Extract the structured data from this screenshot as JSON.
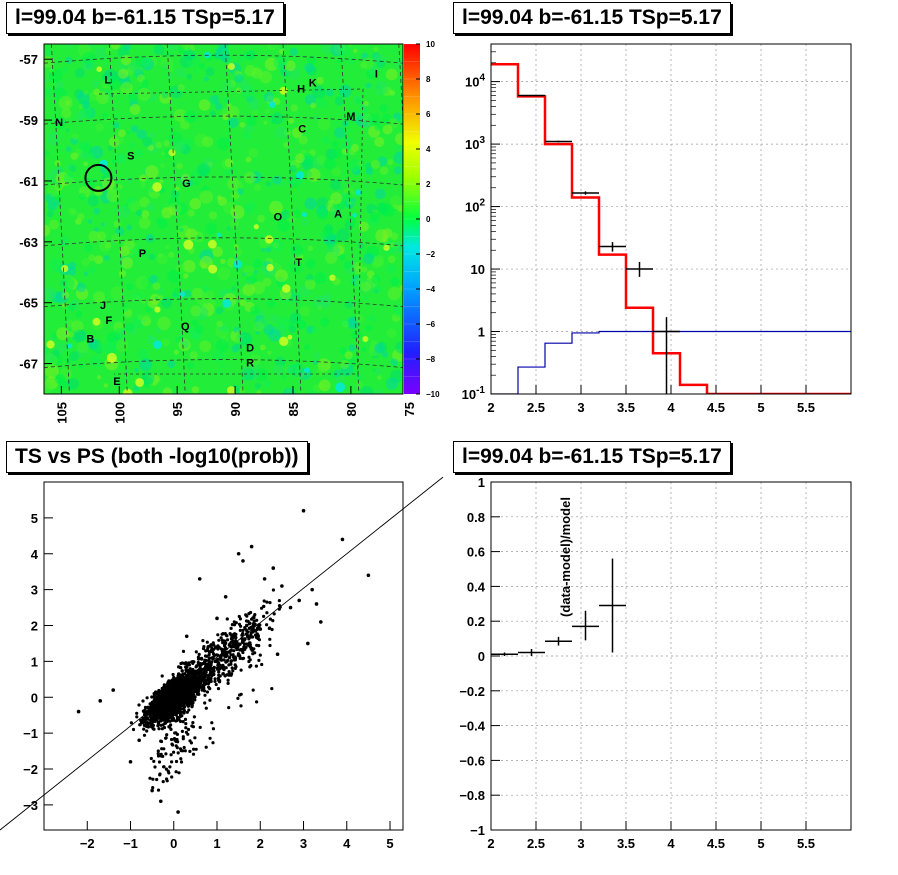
{
  "panels": {
    "skymap_title": "l=99.04 b=-61.15 TSp=5.17",
    "spectrum_title": "l=99.04 b=-61.15 TSp=5.17",
    "scatter_title": "TS vs PS (both -log10(prob))",
    "residual_title": "l=99.04 b=-61.15 TSp=5.17"
  },
  "chart_data": [
    {
      "type": "heatmap",
      "title": "l=99.04 b=-61.15 TSp=5.17",
      "x_ticks": [
        105,
        100,
        95,
        90,
        85,
        80,
        75
      ],
      "y_ticks": [
        -57,
        -59,
        -61,
        -63,
        -65,
        -67
      ],
      "xlim": [
        106.5,
        75.5
      ],
      "ylim": [
        -68.0,
        -56.5
      ],
      "colorbar_ticks": [
        10,
        8,
        6,
        4,
        2,
        0,
        -2,
        -4,
        -6,
        -8,
        -10
      ],
      "colorbar_range": [
        -10,
        10
      ],
      "typical_value_range": [
        -1,
        1
      ],
      "source_circle": {
        "l": 101.8,
        "b": -60.9
      },
      "cell_labels": [
        {
          "text": "L",
          "l": 101.0,
          "b": -57.8
        },
        {
          "text": "H",
          "l": 84.3,
          "b": -58.1
        },
        {
          "text": "K",
          "l": 83.3,
          "b": -57.9
        },
        {
          "text": "I",
          "l": 77.8,
          "b": -57.6
        },
        {
          "text": "N",
          "l": 105.2,
          "b": -59.2
        },
        {
          "text": "M",
          "l": 80.0,
          "b": -59.0
        },
        {
          "text": "C",
          "l": 84.2,
          "b": -59.4
        },
        {
          "text": "S",
          "l": 99.0,
          "b": -60.3
        },
        {
          "text": "G",
          "l": 94.2,
          "b": -61.2
        },
        {
          "text": "O",
          "l": 86.3,
          "b": -62.3
        },
        {
          "text": "A",
          "l": 81.1,
          "b": -62.2
        },
        {
          "text": "P",
          "l": 98.0,
          "b": -63.5
        },
        {
          "text": "T",
          "l": 84.5,
          "b": -63.8
        },
        {
          "text": "J",
          "l": 101.4,
          "b": -65.2
        },
        {
          "text": "F",
          "l": 100.9,
          "b": -65.7
        },
        {
          "text": "B",
          "l": 102.5,
          "b": -66.3
        },
        {
          "text": "Q",
          "l": 94.3,
          "b": -65.9
        },
        {
          "text": "D",
          "l": 88.7,
          "b": -66.6
        },
        {
          "text": "R",
          "l": 88.7,
          "b": -67.1
        },
        {
          "text": "E",
          "l": 100.2,
          "b": -67.7
        }
      ]
    },
    {
      "type": "line",
      "title": "l=99.04 b=-61.15 TSp=5.17",
      "y_scale": "log",
      "xlim": [
        2,
        6
      ],
      "ylim": [
        0.1,
        40000
      ],
      "x_ticks": [
        "2",
        "2.5",
        "3",
        "3.5",
        "4",
        "4.5",
        "5",
        "5.5"
      ],
      "y_ticks": [
        "10^4",
        "10^3",
        "10^2",
        "10",
        "1",
        "10^-1"
      ],
      "series": [
        {
          "kind": "model-histogram",
          "color": "#ff0000",
          "bin_edges": [
            2.0,
            2.3,
            2.6,
            2.9,
            3.2,
            3.5,
            3.8,
            4.1,
            4.4,
            6.0
          ],
          "values": [
            19000,
            5800,
            1000,
            140,
            17,
            2.4,
            0.45,
            0.14,
            0.1
          ]
        },
        {
          "kind": "background-histogram",
          "color": "#0000aa",
          "bin_edges": [
            2.0,
            2.3,
            2.6,
            2.9,
            3.2,
            6.0
          ],
          "values": [
            0.1,
            0.27,
            0.65,
            0.95,
            1.0
          ]
        },
        {
          "kind": "data-points",
          "color": "#000000",
          "x": [
            2.45,
            2.75,
            3.05,
            3.35,
            3.65,
            3.95
          ],
          "y": [
            6000,
            1100,
            165,
            23,
            10,
            1.0
          ],
          "x_err": [
            0.15,
            0.15,
            0.15,
            0.15,
            0.15,
            0.15
          ],
          "y_low": [
            5900,
            1070,
            155,
            19,
            7.5,
            0.1
          ],
          "y_high": [
            6100,
            1130,
            175,
            27,
            13,
            1.7
          ]
        }
      ]
    },
    {
      "type": "scatter",
      "title": "TS vs PS (both -log10(prob))",
      "xlim": [
        -3,
        5.3
      ],
      "ylim": [
        -3.7,
        6.0
      ],
      "x_ticks": [
        "−2",
        "−1",
        "0",
        "1",
        "2",
        "3",
        "4",
        "5"
      ],
      "y_ticks": [
        "5",
        "4",
        "3",
        "2",
        "1",
        "0",
        "−1",
        "−2",
        "−3"
      ],
      "diagonal": {
        "x": [
          -3,
          5.3
        ],
        "y": [
          -3.7,
          5.3
        ]
      },
      "outliers": {
        "x": [
          3.0,
          3.9,
          4.5,
          3.2,
          2.9,
          2.5,
          2.1,
          1.6,
          1.5,
          1.8,
          2.3,
          2.7,
          3.3,
          3.1,
          -2.2,
          -1.7,
          -1.4,
          -1.0,
          -0.5,
          0.1,
          0.6,
          1.2,
          1.0,
          2.0,
          -0.8,
          -0.3,
          0.3,
          3.4,
          2.4
        ],
        "y": [
          5.2,
          4.4,
          3.4,
          3.0,
          2.7,
          3.1,
          3.3,
          3.8,
          4.0,
          4.2,
          3.6,
          2.5,
          2.6,
          1.5,
          -0.4,
          -0.1,
          0.2,
          -1.8,
          -2.6,
          -3.2,
          3.3,
          2.8,
          2.2,
          1.9,
          -1.2,
          -2.9,
          1.7,
          2.1,
          1.2
        ]
      }
    },
    {
      "type": "scatter",
      "title": "l=99.04 b=-61.15 TSp=5.17",
      "ylabel": "(data-model)/model",
      "xlim": [
        2,
        6
      ],
      "ylim": [
        -1,
        1
      ],
      "x_ticks": [
        "2",
        "2.5",
        "3",
        "3.5",
        "4",
        "4.5",
        "5",
        "5.5"
      ],
      "y_ticks": [
        "1",
        "0.8",
        "0.6",
        "0.4",
        "0.2",
        "0",
        "−0.2",
        "−0.4",
        "−0.6",
        "−0.8",
        "−1"
      ],
      "x": [
        2.15,
        2.45,
        2.75,
        3.05,
        3.35
      ],
      "y": [
        0.01,
        0.02,
        0.085,
        0.17,
        0.29
      ],
      "x_err": [
        0.15,
        0.15,
        0.15,
        0.15,
        0.15
      ],
      "y_low": [
        0.0,
        0.0,
        0.06,
        0.09,
        0.02
      ],
      "y_high": [
        0.02,
        0.04,
        0.11,
        0.26,
        0.56
      ]
    }
  ]
}
